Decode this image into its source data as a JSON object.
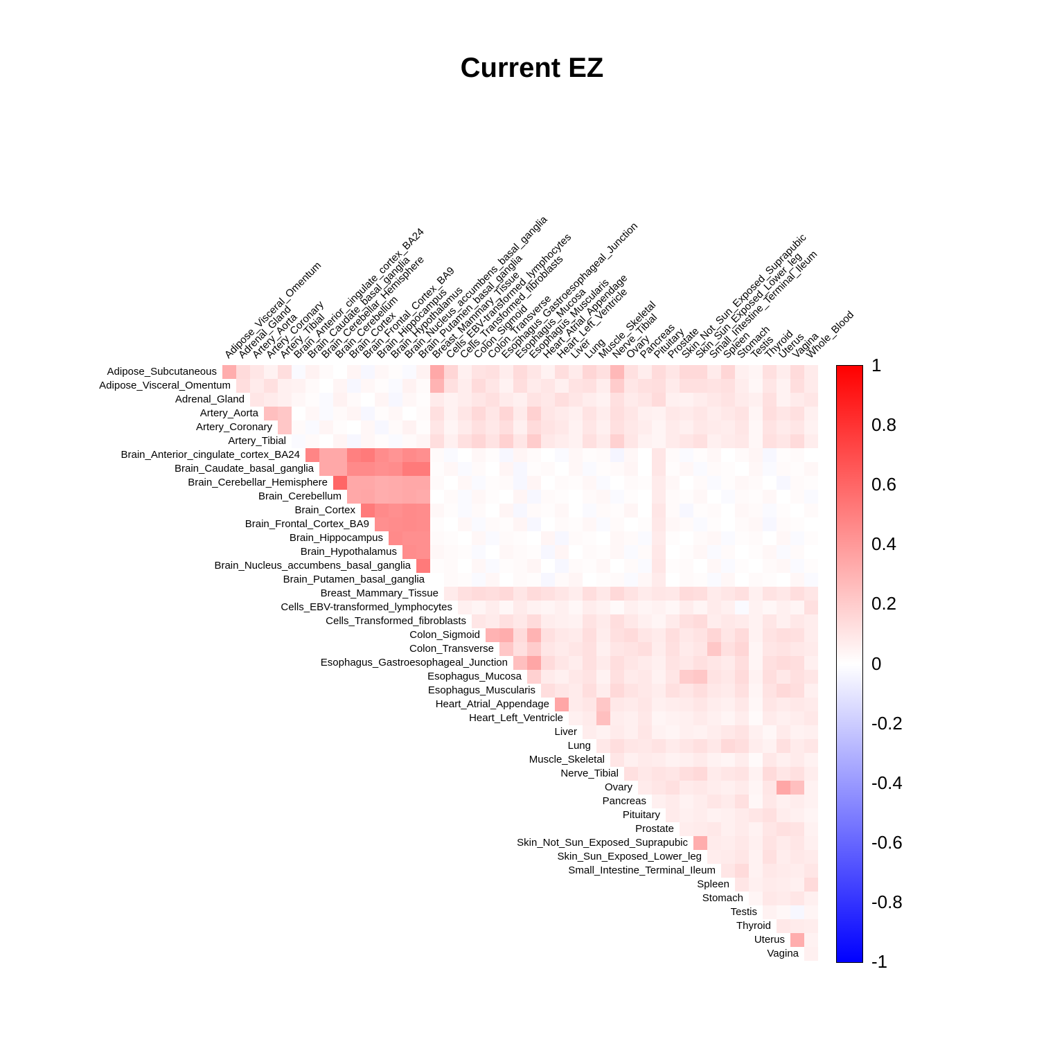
{
  "title": "Current EZ",
  "colors": {
    "max_color": "#FF0000",
    "zero_color": "#FFFFFF",
    "min_color": "#0000FF"
  },
  "colorbar": {
    "ticks": [
      "1",
      "0.8",
      "0.6",
      "0.4",
      "0.2",
      "0",
      "-0.2",
      "-0.4",
      "-0.6",
      "-0.8",
      "-1"
    ],
    "min": -1,
    "max": 1
  },
  "chart_data": {
    "type": "heatmap",
    "title": "Current EZ",
    "triangle": "upper",
    "value_range": [
      -1,
      1
    ],
    "tissues": [
      "Adipose_Subcutaneous",
      "Adipose_Visceral_Omentum",
      "Adrenal_Gland",
      "Artery_Aorta",
      "Artery_Coronary",
      "Artery_Tibial",
      "Brain_Anterior_cingulate_cortex_BA24",
      "Brain_Caudate_basal_ganglia",
      "Brain_Cerebellar_Hemisphere",
      "Brain_Cerebellum",
      "Brain_Cortex",
      "Brain_Frontal_Cortex_BA9",
      "Brain_Hippocampus",
      "Brain_Hypothalamus",
      "Brain_Nucleus_accumbens_basal_ganglia",
      "Brain_Putamen_basal_ganglia",
      "Breast_Mammary_Tissue",
      "Cells_EBV-transformed_lymphocytes",
      "Cells_Transformed_fibroblasts",
      "Colon_Sigmoid",
      "Colon_Transverse",
      "Esophagus_Gastroesophageal_Junction",
      "Esophagus_Mucosa",
      "Esophagus_Muscularis",
      "Heart_Atrial_Appendage",
      "Heart_Left_Ventricle",
      "Liver",
      "Lung",
      "Muscle_Skeletal",
      "Nerve_Tibial",
      "Ovary",
      "Pancreas",
      "Pituitary",
      "Prostate",
      "Skin_Not_Sun_Exposed_Suprapubic",
      "Skin_Sun_Exposed_Lower_leg",
      "Small_Intestine_Terminal_Ileum",
      "Spleen",
      "Stomach",
      "Testis",
      "Thyroid",
      "Uterus",
      "Vagina",
      "Whole_Blood"
    ],
    "values": [
      [
        0.32,
        0.14,
        0.1,
        0.05,
        0.13,
        -0.02,
        0.05,
        0.02,
        0,
        0.04,
        -0.03,
        0.03,
        0.01,
        -0.02,
        0.05,
        0.34,
        0.16,
        0.06,
        0.11,
        0.12,
        0.07,
        0.14,
        0.1,
        0.05,
        0.13,
        0.08,
        0.16,
        0.12,
        0.28,
        0.12,
        0.07,
        0.14,
        0.1,
        0.15,
        0.15,
        0.08,
        0.16,
        0.06,
        0.04,
        0.12,
        0.07,
        0.14,
        0.08
      ],
      [
        0.13,
        0.08,
        0.12,
        0.06,
        0.05,
        0.02,
        0,
        0.04,
        -0.03,
        0.03,
        0.01,
        -0.02,
        0.05,
        0.02,
        0.3,
        0.12,
        0.07,
        0.14,
        0.1,
        0.05,
        0.13,
        0.08,
        0.1,
        0.06,
        0.11,
        0.12,
        0.07,
        0.2,
        0.1,
        0.12,
        0.13,
        0.08,
        0.12,
        0.12,
        0.11,
        0.12,
        0.07,
        0.03,
        0.1,
        0.05,
        0.13,
        0.08
      ],
      [
        0.1,
        0.08,
        0.06,
        0.03,
        0.01,
        -0.02,
        0.05,
        0.02,
        0,
        0.04,
        -0.03,
        0.03,
        0.01,
        0.08,
        0.05,
        0.07,
        0.1,
        0.12,
        0.08,
        0.06,
        0.11,
        0.09,
        0.13,
        0.1,
        0.07,
        0.05,
        0.12,
        0.08,
        0.1,
        0.14,
        0.06,
        0.05,
        0.07,
        0.09,
        0.11,
        0.08,
        0.06,
        0.12,
        0.05,
        0.08,
        0.1
      ],
      [
        0.25,
        0.22,
        0,
        0.03,
        -0.02,
        0.02,
        0.04,
        -0.03,
        0.01,
        0.03,
        0,
        0.02,
        0.12,
        0.05,
        0.1,
        0.15,
        0.1,
        0.16,
        0.08,
        0.18,
        0.1,
        0.08,
        0.06,
        0.11,
        0.07,
        0.13,
        0.1,
        0.06,
        0.05,
        0.09,
        0.08,
        0.1,
        0.07,
        0.09,
        0.11,
        0.04,
        0.13,
        0.1,
        0.12,
        0.06
      ],
      [
        0.22,
        0.02,
        -0.02,
        0.04,
        0.01,
        0,
        0.03,
        -0.03,
        0.02,
        0.05,
        0.01,
        0.1,
        0.04,
        0.08,
        0.12,
        0.09,
        0.13,
        0.06,
        0.14,
        0.11,
        0.09,
        0.05,
        0.1,
        0.06,
        0.12,
        0.09,
        0.07,
        0.04,
        0.08,
        0.06,
        0.09,
        0.08,
        0.07,
        0.1,
        0.03,
        0.11,
        0.08,
        0.1,
        0.05
      ],
      [
        -0.02,
        0.02,
        0,
        0.04,
        -0.03,
        0.03,
        0.01,
        -0.02,
        0.02,
        0.04,
        0.13,
        0.06,
        0.12,
        0.16,
        0.11,
        0.18,
        0.1,
        0.2,
        0.09,
        0.07,
        0.05,
        0.12,
        0.08,
        0.18,
        0.1,
        0.05,
        0.04,
        0.08,
        0.1,
        0.12,
        0.06,
        0.08,
        0.09,
        0.03,
        0.12,
        0.1,
        0.14,
        0.07
      ],
      [
        0.48,
        0.34,
        0.34,
        0.5,
        0.52,
        0.45,
        0.42,
        0.46,
        0.44,
        0.02,
        -0.02,
        0,
        0.03,
        0.01,
        -0.03,
        0.04,
        0.02,
        0,
        -0.02,
        0.03,
        0.01,
        0.02,
        -0.04,
        0.03,
        0,
        0.1,
        0.02,
        -0.02,
        0.01,
        0.03,
        0,
        0.02,
        0.04,
        -0.03,
        0.01,
        0.02,
        0
      ],
      [
        0.34,
        0.34,
        0.46,
        0.46,
        0.44,
        0.45,
        0.52,
        0.52,
        0.01,
        0.03,
        -0.02,
        0.02,
        0,
        0.04,
        -0.03,
        0.01,
        0.02,
        0,
        0.03,
        -0.02,
        0.01,
        0.02,
        0.04,
        0,
        0.1,
        0.01,
        0.03,
        -0.02,
        0.02,
        0.01,
        0,
        0.03,
        -0.02,
        0.02,
        0.01,
        0.03
      ],
      [
        0.6,
        0.34,
        0.34,
        0.32,
        0.33,
        0.34,
        0.34,
        0.02,
        0,
        0.03,
        -0.02,
        0.01,
        0.02,
        -0.03,
        0.04,
        0,
        0.02,
        0.01,
        0.03,
        -0.02,
        0,
        0.02,
        0.01,
        0.08,
        0.03,
        0,
        0.02,
        -0.02,
        0.01,
        0.03,
        0.02,
        0,
        -0.03,
        0.02,
        0.01
      ],
      [
        0.34,
        0.35,
        0.32,
        0.33,
        0.34,
        0.33,
        0,
        0.02,
        -0.02,
        0.03,
        0.01,
        0,
        0.04,
        -0.03,
        0.02,
        0.01,
        0,
        0.02,
        0.03,
        -0.02,
        0.01,
        0,
        0.08,
        0.02,
        0.01,
        0.03,
        0,
        -0.02,
        0.02,
        0.01,
        0.03,
        0,
        0.02,
        -0.02
      ],
      [
        0.52,
        0.46,
        0.44,
        0.46,
        0.45,
        0.03,
        0.01,
        -0.02,
        0.02,
        0,
        0.04,
        -0.03,
        0.02,
        0.01,
        0.03,
        0,
        -0.02,
        0.02,
        0.01,
        0.04,
        0,
        0.1,
        0.02,
        -0.03,
        0.01,
        0.02,
        0,
        0.03,
        0.02,
        -0.02,
        0.01,
        0,
        0.02
      ],
      [
        0.44,
        0.45,
        0.46,
        0.45,
        0.01,
        0,
        0.03,
        -0.02,
        0.02,
        0.01,
        0.04,
        -0.03,
        0,
        0.02,
        0.01,
        0.03,
        -0.02,
        0.02,
        0,
        0.01,
        0.09,
        0.03,
        0.02,
        -0.02,
        0.01,
        0,
        0.02,
        0.03,
        -0.03,
        0.02,
        0.01,
        0
      ],
      [
        0.46,
        0.44,
        0.44,
        0.02,
        0.01,
        0,
        0.03,
        -0.02,
        0.02,
        0.01,
        0,
        0.04,
        -0.03,
        0.02,
        0.01,
        0,
        0.03,
        0.02,
        -0.02,
        0.08,
        0.01,
        0,
        0.02,
        0.03,
        -0.02,
        0.01,
        0.02,
        0,
        0.03,
        -0.02,
        0.01
      ],
      [
        0.45,
        0.44,
        0.03,
        0.02,
        0.01,
        -0.02,
        0,
        0.03,
        0.02,
        0.01,
        -0.03,
        0.04,
        0,
        0.02,
        0.01,
        0.03,
        -0.02,
        0.02,
        0.09,
        0,
        0.01,
        0.03,
        -0.02,
        0.02,
        0,
        0.01,
        0.03,
        -0.02,
        0.02,
        0
      ],
      [
        0.52,
        0.01,
        0.02,
        0,
        0.03,
        -0.02,
        0.01,
        0.02,
        0.04,
        0,
        -0.03,
        0.02,
        0.01,
        0.03,
        0,
        0.02,
        -0.02,
        0.1,
        0.01,
        0.02,
        0,
        0.03,
        -0.02,
        0.01,
        0,
        0.02,
        0.03,
        -0.02,
        0.01
      ],
      [
        0,
        0.02,
        0.01,
        -0.02,
        0.03,
        0,
        0.02,
        0.01,
        -0.03,
        0.02,
        0.04,
        0,
        0.01,
        0.02,
        -0.02,
        0.03,
        0.08,
        0,
        0.02,
        0.01,
        -0.02,
        0.03,
        0,
        0.02,
        0.01,
        0,
        0.03,
        -0.02
      ],
      [
        0.08,
        0.12,
        0.14,
        0.13,
        0.15,
        0.1,
        0.14,
        0.12,
        0.1,
        0.07,
        0.13,
        0.09,
        0.15,
        0.11,
        0.08,
        0.1,
        0.09,
        0.14,
        0.13,
        0.08,
        0.1,
        0.12,
        0.06,
        0.11,
        0.09,
        0.13,
        0.1
      ],
      [
        0.06,
        0.04,
        0.07,
        0.03,
        0.08,
        0.05,
        0.04,
        0.06,
        0.03,
        0.07,
        0.05,
        0.02,
        0.06,
        0.04,
        0.05,
        0.03,
        0.07,
        0.04,
        0.08,
        0.06,
        -0.02,
        0.05,
        0.03,
        0.06,
        0.04,
        0.12
      ],
      [
        0.1,
        0.08,
        0.12,
        0.09,
        0.14,
        0.07,
        0.06,
        0.05,
        0.11,
        0.08,
        0.13,
        0.09,
        0.06,
        0.04,
        0.08,
        0.12,
        0.14,
        0.07,
        0.09,
        0.08,
        0.05,
        0.1,
        0.06,
        0.09,
        0.07
      ],
      [
        0.3,
        0.32,
        0.14,
        0.3,
        0.12,
        0.09,
        0.08,
        0.13,
        0.07,
        0.12,
        0.14,
        0.1,
        0.08,
        0.13,
        0.09,
        0.11,
        0.16,
        0.1,
        0.14,
        0.05,
        0.11,
        0.13,
        0.12,
        0.07
      ],
      [
        0.22,
        0.12,
        0.2,
        0.1,
        0.08,
        0.1,
        0.12,
        0.06,
        0.1,
        0.11,
        0.13,
        0.07,
        0.12,
        0.08,
        0.1,
        0.22,
        0.12,
        0.16,
        0.04,
        0.1,
        0.11,
        0.09,
        0.08
      ],
      [
        0.25,
        0.35,
        0.14,
        0.1,
        0.07,
        0.12,
        0.08,
        0.13,
        0.1,
        0.08,
        0.06,
        0.11,
        0.09,
        0.12,
        0.1,
        0.08,
        0.13,
        0.04,
        0.12,
        0.14,
        0.13,
        0.06
      ],
      [
        0.18,
        0.08,
        0.06,
        0.09,
        0.11,
        0.05,
        0.12,
        0.08,
        0.09,
        0.05,
        0.1,
        0.2,
        0.22,
        0.11,
        0.09,
        0.14,
        0.05,
        0.13,
        0.09,
        0.12,
        0.1
      ],
      [
        0.13,
        0.1,
        0.08,
        0.13,
        0.07,
        0.15,
        0.11,
        0.09,
        0.07,
        0.12,
        0.1,
        0.13,
        0.09,
        0.08,
        0.12,
        0.04,
        0.11,
        0.15,
        0.13,
        0.06
      ],
      [
        0.35,
        0.08,
        0.1,
        0.22,
        0.09,
        0.08,
        0.1,
        0.06,
        0.07,
        0.08,
        0.1,
        0.07,
        0.06,
        0.09,
        0.03,
        0.1,
        0.08,
        0.09,
        0.08
      ],
      [
        0.06,
        0.08,
        0.25,
        0.07,
        0.06,
        0.09,
        0.04,
        0.05,
        0.06,
        0.08,
        0.06,
        0.04,
        0.07,
        0.02,
        0.08,
        0.06,
        0.07,
        0.09
      ],
      [
        0.07,
        0.05,
        0.08,
        0.06,
        0.1,
        0.05,
        0.04,
        0.06,
        0.05,
        0.07,
        0.09,
        0.11,
        0.06,
        0.03,
        0.08,
        0.05,
        0.06
      ],
      [
        0.09,
        0.13,
        0.1,
        0.09,
        0.11,
        0.08,
        0.1,
        0.12,
        0.09,
        0.15,
        0.13,
        0.07,
        0.05,
        0.12,
        0.08,
        0.1
      ],
      [
        0.1,
        0.06,
        0.08,
        0.07,
        0.05,
        0.06,
        0.08,
        0.05,
        0.04,
        0.07,
        0.02,
        0.09,
        0.06,
        0.08,
        0.05
      ],
      [
        0.12,
        0.09,
        0.11,
        0.1,
        0.13,
        0.15,
        0.08,
        0.1,
        0.11,
        0.05,
        0.14,
        0.1,
        0.12,
        0.07
      ],
      [
        0.08,
        0.1,
        0.12,
        0.08,
        0.09,
        0.07,
        0.06,
        0.08,
        0.04,
        0.1,
        0.35,
        0.25,
        0.05
      ],
      [
        0.06,
        0.08,
        0.05,
        0.07,
        0.1,
        0.08,
        0.12,
        0.03,
        0.09,
        0.06,
        0.07,
        0.05
      ],
      [
        0.08,
        0.06,
        0.07,
        0.05,
        0.06,
        0.08,
        0.1,
        0.12,
        0.07,
        0.06,
        0.04
      ],
      [
        0.07,
        0.08,
        0.09,
        0.06,
        0.08,
        0.05,
        0.1,
        0.12,
        0.11,
        0.05
      ],
      [
        0.32,
        0.08,
        0.07,
        0.09,
        0.06,
        0.11,
        0.08,
        0.1,
        0.06
      ],
      [
        0.07,
        0.08,
        0.1,
        0.05,
        0.12,
        0.07,
        0.09,
        0.08
      ],
      [
        0.1,
        0.14,
        0.05,
        0.09,
        0.08,
        0.07,
        0.1
      ],
      [
        0.1,
        0.06,
        0.08,
        0.07,
        0.06,
        0.14
      ],
      [
        0.04,
        0.09,
        0.08,
        0.1,
        0.06
      ],
      [
        0.05,
        0.03,
        -0.03,
        0.04
      ],
      [
        0.09,
        0.08,
        0.07
      ],
      [
        0.32,
        0.05
      ],
      [
        0.06
      ]
    ]
  }
}
